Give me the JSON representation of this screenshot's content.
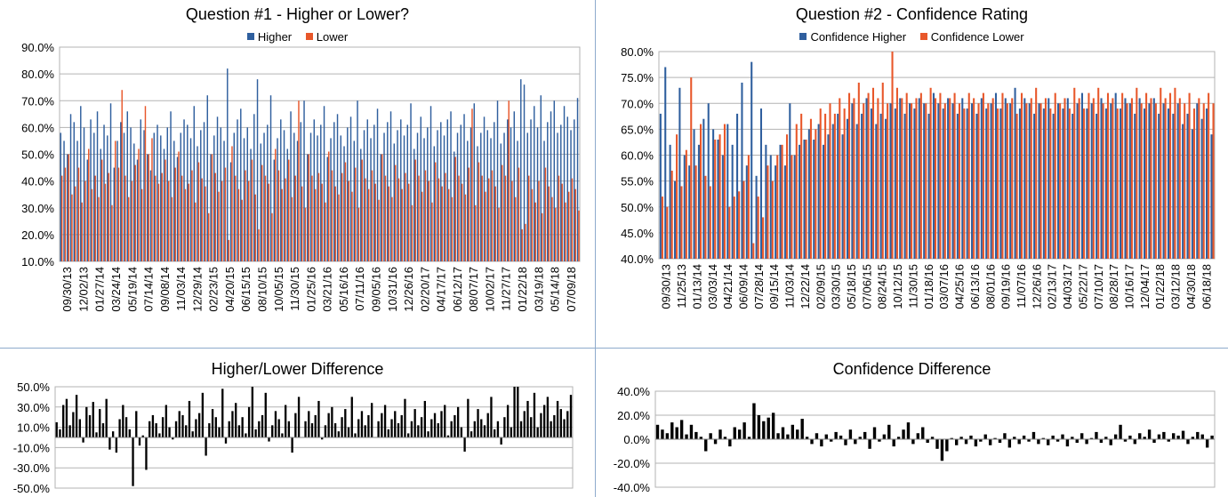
{
  "chart_data": [
    {
      "type": "bar",
      "title": "Question #1 - Higher or Lower?",
      "ylim": [
        0.1,
        0.9
      ],
      "y_ticks": [
        "90.0%",
        "80.0%",
        "70.0%",
        "60.0%",
        "50.0%",
        "40.0%",
        "30.0%",
        "20.0%",
        "10.0%"
      ],
      "x_ticks": [
        "09/30/13",
        "12/02/13",
        "01/27/14",
        "03/24/14",
        "05/19/14",
        "07/14/14",
        "09/08/14",
        "11/03/14",
        "12/29/14",
        "02/23/15",
        "04/20/15",
        "06/15/15",
        "08/10/15",
        "10/05/15",
        "11/30/15",
        "01/25/16",
        "03/21/16",
        "05/16/16",
        "07/11/16",
        "09/05/16",
        "10/31/16",
        "12/26/16",
        "02/20/17",
        "04/17/17",
        "06/12/17",
        "08/07/17",
        "10/02/17",
        "11/27/17",
        "01/22/18",
        "03/19/18",
        "05/14/18",
        "07/09/18"
      ],
      "grid": true,
      "legend_position": "top",
      "series": [
        {
          "name": "Higher",
          "color": "#2f5f9e",
          "values": [
            0.58,
            0.55,
            0.5,
            0.65,
            0.62,
            0.55,
            0.68,
            0.6,
            0.48,
            0.63,
            0.58,
            0.66,
            0.52,
            0.61,
            0.57,
            0.69,
            0.45,
            0.55,
            0.62,
            0.58,
            0.66,
            0.6,
            0.54,
            0.48,
            0.63,
            0.59,
            0.5,
            0.44,
            0.58,
            0.61,
            0.57,
            0.52,
            0.6,
            0.66,
            0.55,
            0.49,
            0.58,
            0.63,
            0.61,
            0.56,
            0.68,
            0.53,
            0.59,
            0.62,
            0.72,
            0.5,
            0.57,
            0.64,
            0.6,
            0.55,
            0.82,
            0.47,
            0.58,
            0.63,
            0.67,
            0.56,
            0.6,
            0.52,
            0.65,
            0.78,
            0.54,
            0.58,
            0.61,
            0.72,
            0.48,
            0.56,
            0.63,
            0.59,
            0.52,
            0.66,
            0.58,
            0.55,
            0.62,
            0.7,
            0.5,
            0.58,
            0.63,
            0.57,
            0.61,
            0.68,
            0.49,
            0.56,
            0.62,
            0.65,
            0.57,
            0.53,
            0.6,
            0.64,
            0.55,
            0.7,
            0.52,
            0.59,
            0.63,
            0.56,
            0.61,
            0.67,
            0.5,
            0.58,
            0.62,
            0.66,
            0.54,
            0.59,
            0.63,
            0.57,
            0.61,
            0.69,
            0.52,
            0.58,
            0.64,
            0.56,
            0.6,
            0.68,
            0.53,
            0.59,
            0.62,
            0.57,
            0.63,
            0.66,
            0.51,
            0.58,
            0.61,
            0.65,
            0.55,
            0.6,
            0.69,
            0.53,
            0.58,
            0.64,
            0.59,
            0.56,
            0.62,
            0.7,
            0.54,
            0.58,
            0.63,
            0.6,
            0.66,
            0.55,
            0.78,
            0.76,
            0.58,
            0.63,
            0.68,
            0.6,
            0.72,
            0.55,
            0.62,
            0.66,
            0.7,
            0.58,
            0.61,
            0.68,
            0.64,
            0.59,
            0.63,
            0.71
          ]
        },
        {
          "name": "Lower",
          "color": "#e8572a",
          "values": [
            0.42,
            0.45,
            0.5,
            0.35,
            0.38,
            0.45,
            0.32,
            0.4,
            0.52,
            0.37,
            0.42,
            0.34,
            0.48,
            0.39,
            0.43,
            0.31,
            0.55,
            0.45,
            0.74,
            0.42,
            0.34,
            0.4,
            0.46,
            0.52,
            0.37,
            0.68,
            0.5,
            0.56,
            0.42,
            0.39,
            0.43,
            0.48,
            0.4,
            0.34,
            0.45,
            0.51,
            0.42,
            0.37,
            0.39,
            0.44,
            0.32,
            0.47,
            0.41,
            0.38,
            0.28,
            0.5,
            0.43,
            0.36,
            0.4,
            0.45,
            0.18,
            0.53,
            0.42,
            0.37,
            0.33,
            0.44,
            0.4,
            0.48,
            0.35,
            0.22,
            0.46,
            0.42,
            0.39,
            0.28,
            0.52,
            0.44,
            0.37,
            0.41,
            0.48,
            0.34,
            0.42,
            0.7,
            0.38,
            0.3,
            0.5,
            0.42,
            0.37,
            0.43,
            0.39,
            0.32,
            0.51,
            0.44,
            0.38,
            0.35,
            0.43,
            0.47,
            0.4,
            0.36,
            0.45,
            0.3,
            0.48,
            0.41,
            0.37,
            0.44,
            0.39,
            0.33,
            0.5,
            0.42,
            0.38,
            0.34,
            0.46,
            0.41,
            0.37,
            0.43,
            0.39,
            0.31,
            0.48,
            0.42,
            0.36,
            0.44,
            0.4,
            0.32,
            0.47,
            0.41,
            0.38,
            0.43,
            0.37,
            0.34,
            0.49,
            0.42,
            0.39,
            0.35,
            0.45,
            0.67,
            0.31,
            0.47,
            0.42,
            0.36,
            0.41,
            0.44,
            0.38,
            0.3,
            0.46,
            0.42,
            0.7,
            0.4,
            0.34,
            0.45,
            0.22,
            0.24,
            0.42,
            0.37,
            0.32,
            0.4,
            0.28,
            0.45,
            0.38,
            0.34,
            0.3,
            0.42,
            0.39,
            0.32,
            0.36,
            0.41,
            0.37,
            0.29
          ]
        }
      ]
    },
    {
      "type": "bar",
      "title": "Question #2 - Confidence Rating",
      "ylim": [
        0.4,
        0.8
      ],
      "y_ticks": [
        "80.0%",
        "75.0%",
        "70.0%",
        "65.0%",
        "60.0%",
        "55.0%",
        "50.0%",
        "45.0%",
        "40.0%"
      ],
      "x_ticks": [
        "09/30/13",
        "11/25/13",
        "01/13/14",
        "03/03/14",
        "04/21/14",
        "06/09/14",
        "07/28/14",
        "09/15/14",
        "11/03/14",
        "12/22/14",
        "02/09/15",
        "03/30/15",
        "05/18/15",
        "07/06/15",
        "08/24/15",
        "10/12/15",
        "11/30/15",
        "01/18/16",
        "03/07/16",
        "04/25/16",
        "06/13/16",
        "08/01/16",
        "09/19/16",
        "11/07/16",
        "12/26/16",
        "02/13/17",
        "04/03/17",
        "05/22/17",
        "07/10/17",
        "08/28/17",
        "10/16/17",
        "12/04/17",
        "01/22/18",
        "03/12/18",
        "04/30/18",
        "06/18/18"
      ],
      "grid": true,
      "legend_position": "top",
      "series": [
        {
          "name": "Confidence Higher",
          "color": "#2f5f9e",
          "values": [
            0.68,
            0.77,
            0.62,
            0.55,
            0.73,
            0.6,
            0.58,
            0.65,
            0.62,
            0.67,
            0.7,
            0.65,
            0.63,
            0.6,
            0.66,
            0.62,
            0.68,
            0.74,
            0.58,
            0.78,
            0.56,
            0.69,
            0.62,
            0.6,
            0.58,
            0.62,
            0.58,
            0.7,
            0.6,
            0.62,
            0.63,
            0.65,
            0.63,
            0.66,
            0.62,
            0.64,
            0.66,
            0.68,
            0.64,
            0.67,
            0.7,
            0.66,
            0.68,
            0.71,
            0.69,
            0.66,
            0.68,
            0.67,
            0.7,
            0.69,
            0.71,
            0.68,
            0.7,
            0.69,
            0.71,
            0.7,
            0.68,
            0.72,
            0.7,
            0.69,
            0.71,
            0.7,
            0.68,
            0.71,
            0.69,
            0.7,
            0.68,
            0.71,
            0.69,
            0.7,
            0.72,
            0.69,
            0.71,
            0.7,
            0.73,
            0.69,
            0.71,
            0.7,
            0.68,
            0.7,
            0.69,
            0.71,
            0.68,
            0.7,
            0.69,
            0.71,
            0.68,
            0.7,
            0.72,
            0.69,
            0.7,
            0.68,
            0.71,
            0.69,
            0.7,
            0.72,
            0.69,
            0.71,
            0.7,
            0.68,
            0.71,
            0.69,
            0.7,
            0.71,
            0.68,
            0.7,
            0.69,
            0.68,
            0.7,
            0.66,
            0.68,
            0.65,
            0.7,
            0.67,
            0.69,
            0.64
          ]
        },
        {
          "name": "Confidence Lower",
          "color": "#e8572a",
          "values": [
            0.52,
            0.5,
            0.57,
            0.64,
            0.54,
            0.61,
            0.75,
            0.58,
            0.66,
            0.56,
            0.54,
            0.63,
            0.64,
            0.66,
            0.5,
            0.52,
            0.53,
            0.55,
            0.6,
            0.43,
            0.52,
            0.48,
            0.58,
            0.55,
            0.6,
            0.62,
            0.64,
            0.6,
            0.66,
            0.68,
            0.63,
            0.67,
            0.65,
            0.69,
            0.68,
            0.7,
            0.68,
            0.71,
            0.69,
            0.72,
            0.71,
            0.74,
            0.7,
            0.72,
            0.73,
            0.71,
            0.74,
            0.7,
            0.8,
            0.73,
            0.71,
            0.72,
            0.7,
            0.71,
            0.72,
            0.7,
            0.73,
            0.71,
            0.72,
            0.7,
            0.71,
            0.72,
            0.7,
            0.69,
            0.72,
            0.71,
            0.7,
            0.72,
            0.7,
            0.71,
            0.69,
            0.72,
            0.7,
            0.71,
            0.68,
            0.72,
            0.7,
            0.71,
            0.73,
            0.7,
            0.71,
            0.69,
            0.72,
            0.7,
            0.71,
            0.69,
            0.73,
            0.71,
            0.69,
            0.72,
            0.71,
            0.73,
            0.7,
            0.72,
            0.71,
            0.69,
            0.72,
            0.7,
            0.71,
            0.73,
            0.7,
            0.72,
            0.71,
            0.7,
            0.73,
            0.71,
            0.72,
            0.73,
            0.71,
            0.7,
            0.72,
            0.69,
            0.71,
            0.7,
            0.72,
            0.7
          ]
        }
      ]
    },
    {
      "type": "bar",
      "title": "Higher/Lower Difference",
      "ylim": [
        -0.5,
        0.5
      ],
      "y_ticks": [
        "50.0%",
        "30.0%",
        "10.0%",
        "-10.0%",
        "-30.0%",
        "-50.0%"
      ],
      "grid": true,
      "series": [
        {
          "name": "",
          "color": "#000000",
          "values": [
            0.15,
            0.08,
            0.32,
            0.38,
            0.12,
            0.25,
            0.42,
            0.18,
            -0.05,
            0.3,
            0.22,
            0.35,
            0.05,
            0.28,
            0.14,
            0.38,
            -0.12,
            0.06,
            -0.15,
            0.18,
            0.32,
            0.2,
            0.08,
            -0.48,
            0.26,
            -0.08,
            0.02,
            -0.32,
            0.16,
            0.22,
            0.14,
            0.04,
            0.2,
            0.32,
            0.1,
            -0.02,
            0.16,
            0.26,
            0.22,
            0.12,
            0.36,
            0.06,
            0.18,
            0.24,
            0.44,
            -0.18,
            0.14,
            0.28,
            0.2,
            0.1,
            0.48,
            -0.06,
            0.16,
            0.26,
            0.34,
            0.12,
            0.2,
            0.04,
            0.3,
            0.5,
            0.08,
            0.16,
            0.22,
            0.44,
            -0.04,
            0.12,
            0.26,
            0.18,
            0.04,
            0.32,
            0.16,
            -0.15,
            0.24,
            0.4,
            0.0,
            0.16,
            0.26,
            0.14,
            0.22,
            0.36,
            -0.02,
            0.12,
            0.24,
            0.3,
            0.14,
            0.06,
            0.2,
            0.28,
            0.1,
            0.4,
            0.04,
            0.18,
            0.26,
            0.12,
            0.22,
            0.34,
            0.0,
            0.16,
            0.24,
            0.32,
            0.08,
            0.18,
            0.26,
            0.14,
            0.22,
            0.38,
            0.04,
            0.16,
            0.28,
            0.12,
            0.2,
            0.36,
            0.06,
            0.18,
            0.24,
            0.14,
            0.26,
            0.32,
            0.02,
            0.16,
            0.22,
            0.3,
            0.1,
            -0.14,
            0.38,
            0.06,
            0.16,
            0.28,
            0.18,
            0.12,
            0.24,
            0.4,
            0.08,
            0.16,
            -0.07,
            0.2,
            0.32,
            0.1,
            0.56,
            0.52,
            0.16,
            0.26,
            0.36,
            0.2,
            0.44,
            0.1,
            0.24,
            0.32,
            0.4,
            0.16,
            0.22,
            0.36,
            0.28,
            0.18,
            0.26,
            0.42
          ]
        }
      ]
    },
    {
      "type": "bar",
      "title": "Confidence Difference",
      "ylim": [
        -0.4,
        0.4
      ],
      "y_ticks": [
        "40.0%",
        "20.0%",
        "0.0%",
        "-20.0%",
        "-40.0%"
      ],
      "grid": true,
      "series": [
        {
          "name": "",
          "color": "#000000",
          "values": [
            0.12,
            0.08,
            0.05,
            0.14,
            0.1,
            0.16,
            0.04,
            0.12,
            0.06,
            0.02,
            -0.1,
            0.05,
            -0.04,
            0.08,
            0.02,
            -0.06,
            0.1,
            0.08,
            0.14,
            0.02,
            0.3,
            0.2,
            0.15,
            0.18,
            0.22,
            0.05,
            0.1,
            0.04,
            0.12,
            0.08,
            0.17,
            0.02,
            -0.04,
            0.05,
            -0.06,
            0.04,
            -0.02,
            0.06,
            0.03,
            -0.05,
            0.08,
            -0.04,
            0.02,
            0.06,
            -0.08,
            0.1,
            -0.02,
            0.04,
            0.12,
            -0.06,
            0.02,
            0.08,
            0.14,
            -0.04,
            0.05,
            0.1,
            -0.03,
            0.02,
            -0.08,
            -0.18,
            -0.1,
            0.01,
            -0.05,
            0.02,
            -0.04,
            0.03,
            -0.06,
            -0.02,
            0.04,
            -0.05,
            0.01,
            -0.03,
            0.05,
            -0.07,
            0.02,
            -0.04,
            0.03,
            -0.02,
            0.06,
            -0.04,
            0.01,
            -0.05,
            0.03,
            -0.02,
            0.04,
            -0.06,
            0.02,
            -0.03,
            0.05,
            -0.04,
            0.01,
            0.06,
            -0.03,
            0.02,
            -0.05,
            0.04,
            0.12,
            -0.02,
            0.03,
            -0.04,
            0.05,
            0.02,
            0.08,
            -0.03,
            0.04,
            0.06,
            -0.02,
            0.05,
            0.03,
            0.07,
            -0.04,
            0.02,
            0.06,
            0.04,
            -0.07,
            0.03
          ]
        }
      ]
    }
  ]
}
